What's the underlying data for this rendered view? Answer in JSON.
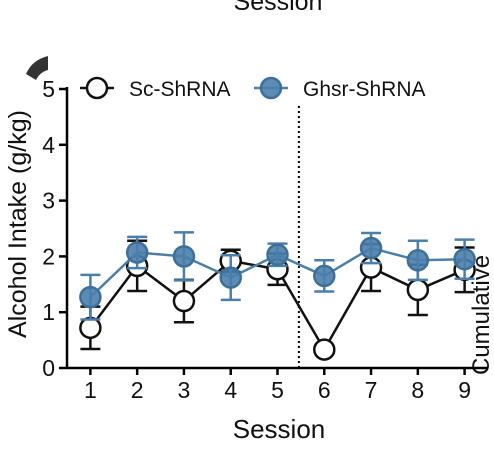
{
  "top_fragment": "Session",
  "right_fragment": "Cumulative",
  "chart_data": {
    "type": "line",
    "title": "",
    "xlabel": "Session",
    "ylabel": "Alcohol Intake (g/kg)",
    "x": [
      1,
      2,
      3,
      4,
      5,
      6,
      7,
      8,
      9
    ],
    "x_tick_labels": [
      "1",
      "2",
      "3",
      "4",
      "5",
      "6",
      "7",
      "8",
      "9"
    ],
    "y_tick_labels": [
      "0",
      "1",
      "2",
      "3",
      "4",
      "5"
    ],
    "ylim": [
      0,
      5
    ],
    "xlim": [
      0.5,
      9.5
    ],
    "divider_after_x": 5.5,
    "grid": false,
    "legend_position": "top",
    "series": [
      {
        "name": "Sc-ShRNA",
        "marker": "open-circle",
        "color": "#111111",
        "fill": "#ffffff",
        "values": [
          0.72,
          1.83,
          1.2,
          1.92,
          1.77,
          0.33,
          1.8,
          1.4,
          1.76
        ],
        "errors": [
          0.38,
          0.45,
          0.38,
          0.2,
          0.28,
          0.0,
          0.42,
          0.45,
          0.4
        ]
      },
      {
        "name": "Ghsr-ShRNA",
        "marker": "filled-circle",
        "color": "#4a7fac",
        "fill": "#4a7fac",
        "values": [
          1.27,
          2.07,
          2.0,
          1.62,
          2.03,
          1.65,
          2.15,
          1.93,
          1.95
        ],
        "errors": [
          0.4,
          0.28,
          0.43,
          0.4,
          0.2,
          0.28,
          0.27,
          0.35,
          0.35
        ]
      }
    ]
  }
}
